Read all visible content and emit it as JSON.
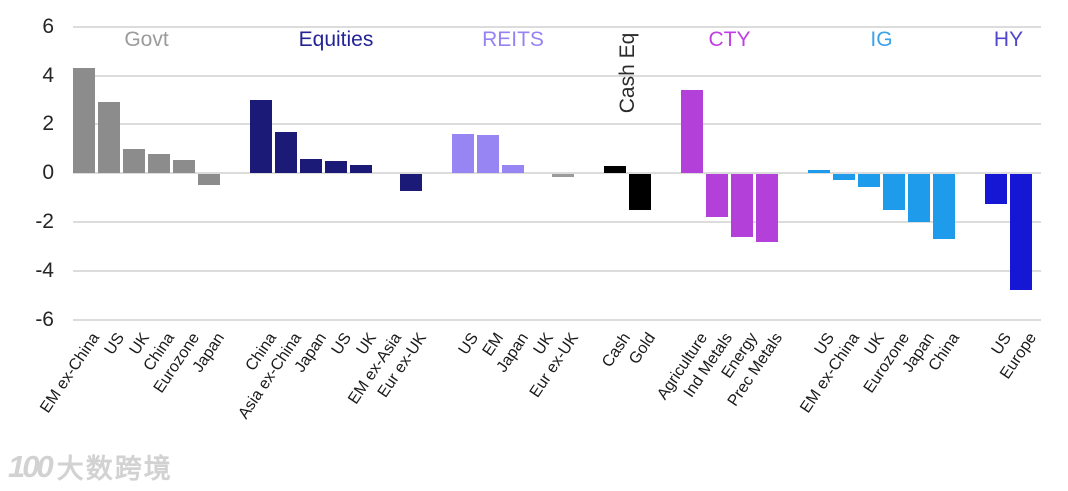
{
  "watermark": {
    "logo": "100",
    "text": "大数跨境"
  },
  "chart_data": {
    "type": "bar",
    "title": "",
    "xlabel": "",
    "ylabel": "",
    "ylim": [
      -6,
      6
    ],
    "yticks": [
      6,
      4,
      2,
      0,
      -2,
      -4,
      -6
    ],
    "grid": true,
    "legend_position": "none",
    "groups": [
      {
        "name": "Govt",
        "color": "#8c8c8c",
        "header_color": "#9b9b9b",
        "header_rotated": false,
        "bars": [
          {
            "label": "EM ex-China",
            "value": 4.3
          },
          {
            "label": "US",
            "value": 2.9
          },
          {
            "label": "UK",
            "value": 1.0
          },
          {
            "label": "China",
            "value": 0.8
          },
          {
            "label": "Eurozone",
            "value": 0.55
          },
          {
            "label": "Japan",
            "value": -0.45
          }
        ]
      },
      {
        "name": "Equities",
        "color": "#1b1b77",
        "header_color": "#232396",
        "header_rotated": false,
        "bars": [
          {
            "label": "China",
            "value": 3.0
          },
          {
            "label": "Asia ex-China",
            "value": 1.7
          },
          {
            "label": "Japan",
            "value": 0.6
          },
          {
            "label": "US",
            "value": 0.5
          },
          {
            "label": "UK",
            "value": 0.35
          },
          {
            "label": "EM ex-Asia",
            "value": 0.0
          },
          {
            "label": "Eur ex-UK",
            "value": -0.7
          }
        ]
      },
      {
        "name": "REITS",
        "color": "#9685f2",
        "header_color": "#9583f5",
        "header_rotated": false,
        "bars": [
          {
            "label": "US",
            "value": 1.6
          },
          {
            "label": "EM",
            "value": 1.55
          },
          {
            "label": "Japan",
            "value": 0.35
          },
          {
            "label": "UK",
            "value": 0.0
          },
          {
            "label": "Eur ex-UK",
            "value": -0.1,
            "color": "#9b9b9b"
          }
        ]
      },
      {
        "name": "Cash Eq",
        "color": "#000000",
        "header_color": "#2b2b2b",
        "header_rotated": true,
        "bars": [
          {
            "label": "Cash",
            "value": 0.3
          },
          {
            "label": "Gold",
            "value": -1.45
          }
        ]
      },
      {
        "name": "CTY",
        "color": "#b340d9",
        "header_color": "#c03fe3",
        "header_rotated": false,
        "bars": [
          {
            "label": "Agriculture",
            "value": 3.4
          },
          {
            "label": "Ind Metals",
            "value": -1.75
          },
          {
            "label": "Energy",
            "value": -2.55
          },
          {
            "label": "Prec Metals",
            "value": -2.75
          }
        ]
      },
      {
        "name": "IG",
        "color": "#1e9ceb",
        "header_color": "#3ba2e8",
        "header_rotated": false,
        "bars": [
          {
            "label": "US",
            "value": 0.15
          },
          {
            "label": "EM ex-China",
            "value": -0.25
          },
          {
            "label": "UK",
            "value": -0.5
          },
          {
            "label": "Eurozone",
            "value": -1.45
          },
          {
            "label": "Japan",
            "value": -1.95
          },
          {
            "label": "China",
            "value": -2.65
          }
        ]
      },
      {
        "name": "HY",
        "color": "#1616d5",
        "header_color": "#5146cb",
        "header_rotated": false,
        "bars": [
          {
            "label": "US",
            "value": -1.2
          },
          {
            "label": "Europe",
            "value": -4.75
          }
        ]
      }
    ]
  }
}
